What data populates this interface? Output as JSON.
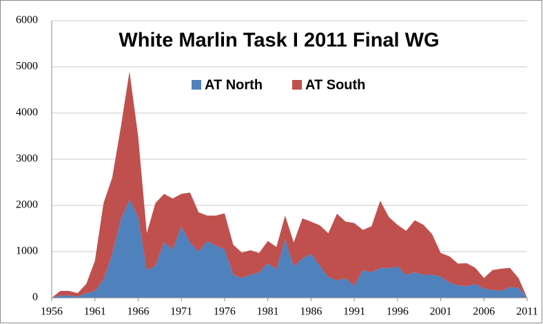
{
  "chart_data": {
    "type": "stacked-area",
    "title": "White Marlin Task I 2011 Final WG",
    "x": [
      1956,
      1957,
      1958,
      1959,
      1960,
      1961,
      1962,
      1963,
      1964,
      1965,
      1966,
      1967,
      1968,
      1969,
      1970,
      1971,
      1972,
      1973,
      1974,
      1975,
      1976,
      1977,
      1978,
      1979,
      1980,
      1981,
      1982,
      1983,
      1984,
      1985,
      1986,
      1987,
      1988,
      1989,
      1990,
      1991,
      1992,
      1993,
      1994,
      1995,
      1996,
      1997,
      1998,
      1999,
      2000,
      2001,
      2002,
      2003,
      2004,
      2005,
      2006,
      2007,
      2008,
      2009,
      2010,
      2011
    ],
    "series": [
      {
        "name": "AT North",
        "color": "#4f81bd",
        "values": [
          0,
          50,
          50,
          30,
          100,
          150,
          400,
          950,
          1700,
          2130,
          1750,
          600,
          700,
          1200,
          1050,
          1550,
          1200,
          1000,
          1230,
          1130,
          1050,
          500,
          430,
          500,
          550,
          750,
          620,
          1270,
          680,
          850,
          950,
          700,
          450,
          380,
          420,
          260,
          600,
          550,
          650,
          640,
          680,
          500,
          550,
          500,
          500,
          460,
          330,
          270,
          250,
          300,
          200,
          170,
          150,
          230,
          220,
          0
        ]
      },
      {
        "name": "AT South",
        "color": "#c0504d",
        "values": [
          0,
          100,
          100,
          70,
          200,
          650,
          1650,
          1650,
          2000,
          2770,
          1750,
          800,
          1350,
          1050,
          1100,
          700,
          1080,
          850,
          550,
          650,
          780,
          650,
          550,
          530,
          420,
          480,
          480,
          510,
          520,
          870,
          700,
          870,
          950,
          1440,
          1230,
          1360,
          870,
          1000,
          1450,
          1110,
          900,
          950,
          1130,
          1080,
          880,
          510,
          570,
          470,
          500,
          350,
          230,
          430,
          480,
          420,
          210,
          0
        ]
      }
    ],
    "xlim": [
      1956,
      2011
    ],
    "xticks": [
      1956,
      1961,
      1966,
      1971,
      1976,
      1981,
      1986,
      1991,
      1996,
      2001,
      2006,
      2011
    ],
    "ylim": [
      0,
      6000
    ],
    "yticks": [
      0,
      1000,
      2000,
      3000,
      4000,
      5000,
      6000
    ],
    "grid": true,
    "legend": "top"
  }
}
